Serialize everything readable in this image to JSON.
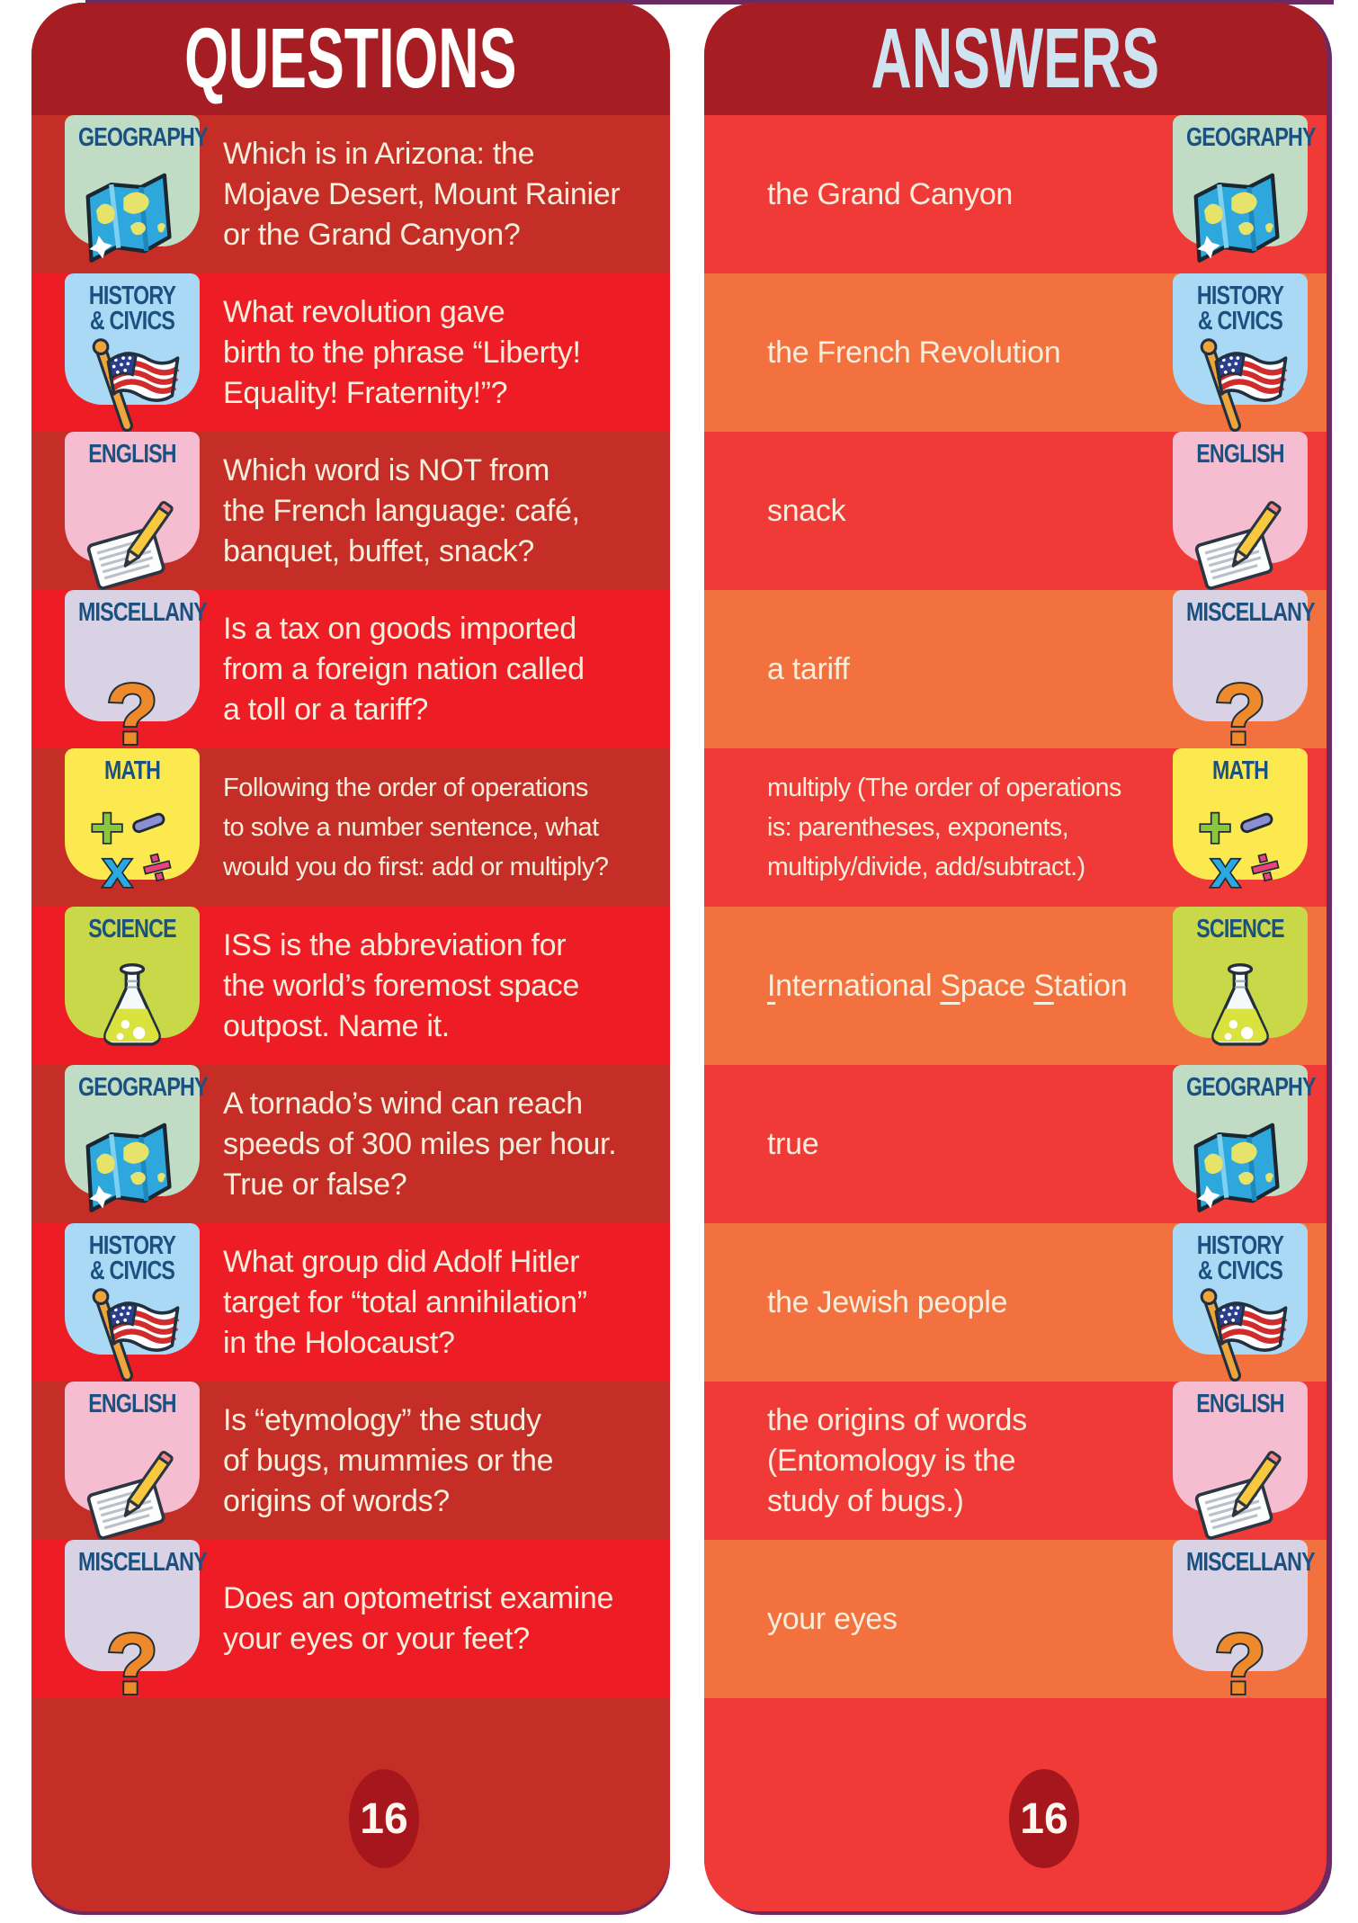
{
  "colors": {
    "header_red": "#a61e24",
    "tones": {
      "dark": "#c52d27",
      "bright": "#ee1c24",
      "red": "#ef3a38",
      "orange": "#f2713f"
    },
    "q_footer": "#c52d27",
    "a_footer": "#ef3a38",
    "page_circle": "#a5161d",
    "questions_title_color": "#fefefc",
    "answers_title_color": "#cfe3f1",
    "body_text": "#f8eedb",
    "category_label": "#1b5180",
    "edge_purple": "#6b2a62"
  },
  "categories": {
    "geography": {
      "label": "GEOGRAPHY",
      "bg": "#c0dcc4",
      "icon": "map-icon"
    },
    "history": {
      "label": "HISTORY\n& CIVICS",
      "bg": "#a9d9f4",
      "icon": "flag-icon"
    },
    "english": {
      "label": "ENGLISH",
      "bg": "#f6bcd0",
      "icon": "paper-pencil-icon"
    },
    "miscellany": {
      "label": "MISCELLANY",
      "bg": "#d9d2e4",
      "icon": "question-mark-icon"
    },
    "math": {
      "label": "MATH",
      "bg": "#fce94f",
      "icon": "math-icon"
    },
    "science": {
      "label": "SCIENCE",
      "bg": "#c8d848",
      "icon": "flask-icon"
    }
  },
  "questions_card": {
    "title": "QUESTIONS",
    "page_number": "16",
    "rows": [
      {
        "category": "geography",
        "tone": "dark",
        "text": "Which is in Arizona: the\nMojave Desert, Mount Rainier\nor the Grand Canyon?"
      },
      {
        "category": "history",
        "tone": "bright",
        "text": "What revolution gave\nbirth to the phrase “Liberty!\nEquality! Fraternity!”?"
      },
      {
        "category": "english",
        "tone": "dark",
        "text": "Which word is NOT from\nthe French language: café,\nbanquet, buffet, snack?"
      },
      {
        "category": "miscellany",
        "tone": "bright",
        "text": "Is a tax on goods imported\nfrom a foreign nation called\na toll or a tariff?"
      },
      {
        "category": "math",
        "tone": "dark",
        "condensed": true,
        "text": "Following the order of operations\nto solve a number sentence, what\nwould you do first: add or multiply?"
      },
      {
        "category": "science",
        "tone": "bright",
        "text": "ISS is the abbreviation for\nthe world’s foremost space\noutpost. Name it."
      },
      {
        "category": "geography",
        "tone": "dark",
        "text": "A tornado’s wind can reach\nspeeds of 300 miles per hour.\nTrue or false?"
      },
      {
        "category": "history",
        "tone": "bright",
        "text": "What group did Adolf Hitler\ntarget for “total annihilation”\nin the Holocaust?"
      },
      {
        "category": "english",
        "tone": "dark",
        "text": "Is “etymology” the study\nof bugs, mummies or the\norigins of words?"
      },
      {
        "category": "miscellany",
        "tone": "bright",
        "text": "Does an optometrist examine\nyour eyes or your feet?"
      }
    ]
  },
  "answers_card": {
    "title": "ANSWERS",
    "page_number": "16",
    "rows": [
      {
        "category": "geography",
        "tone": "red",
        "text": "the Grand Canyon"
      },
      {
        "category": "history",
        "tone": "orange",
        "text": "the French Revolution"
      },
      {
        "category": "english",
        "tone": "red",
        "text": "snack"
      },
      {
        "category": "miscellany",
        "tone": "orange",
        "text": "a tariff"
      },
      {
        "category": "math",
        "tone": "red",
        "condensed": true,
        "text": "multiply (The order of operations\nis: parentheses, exponents,\nmultiply/divide, add/subtract.)"
      },
      {
        "category": "science",
        "tone": "orange",
        "text": "International Space Station",
        "segments": [
          {
            "text": "I",
            "underline": true
          },
          {
            "text": "nternational "
          },
          {
            "text": "S",
            "underline": true
          },
          {
            "text": "pace "
          },
          {
            "text": "S",
            "underline": true
          },
          {
            "text": "tation"
          }
        ]
      },
      {
        "category": "geography",
        "tone": "red",
        "text": "true"
      },
      {
        "category": "history",
        "tone": "orange",
        "text": "the Jewish people"
      },
      {
        "category": "english",
        "tone": "red",
        "text": "the origins of words\n(Entomology is the\nstudy of bugs.)"
      },
      {
        "category": "miscellany",
        "tone": "orange",
        "text": "your eyes"
      }
    ]
  }
}
